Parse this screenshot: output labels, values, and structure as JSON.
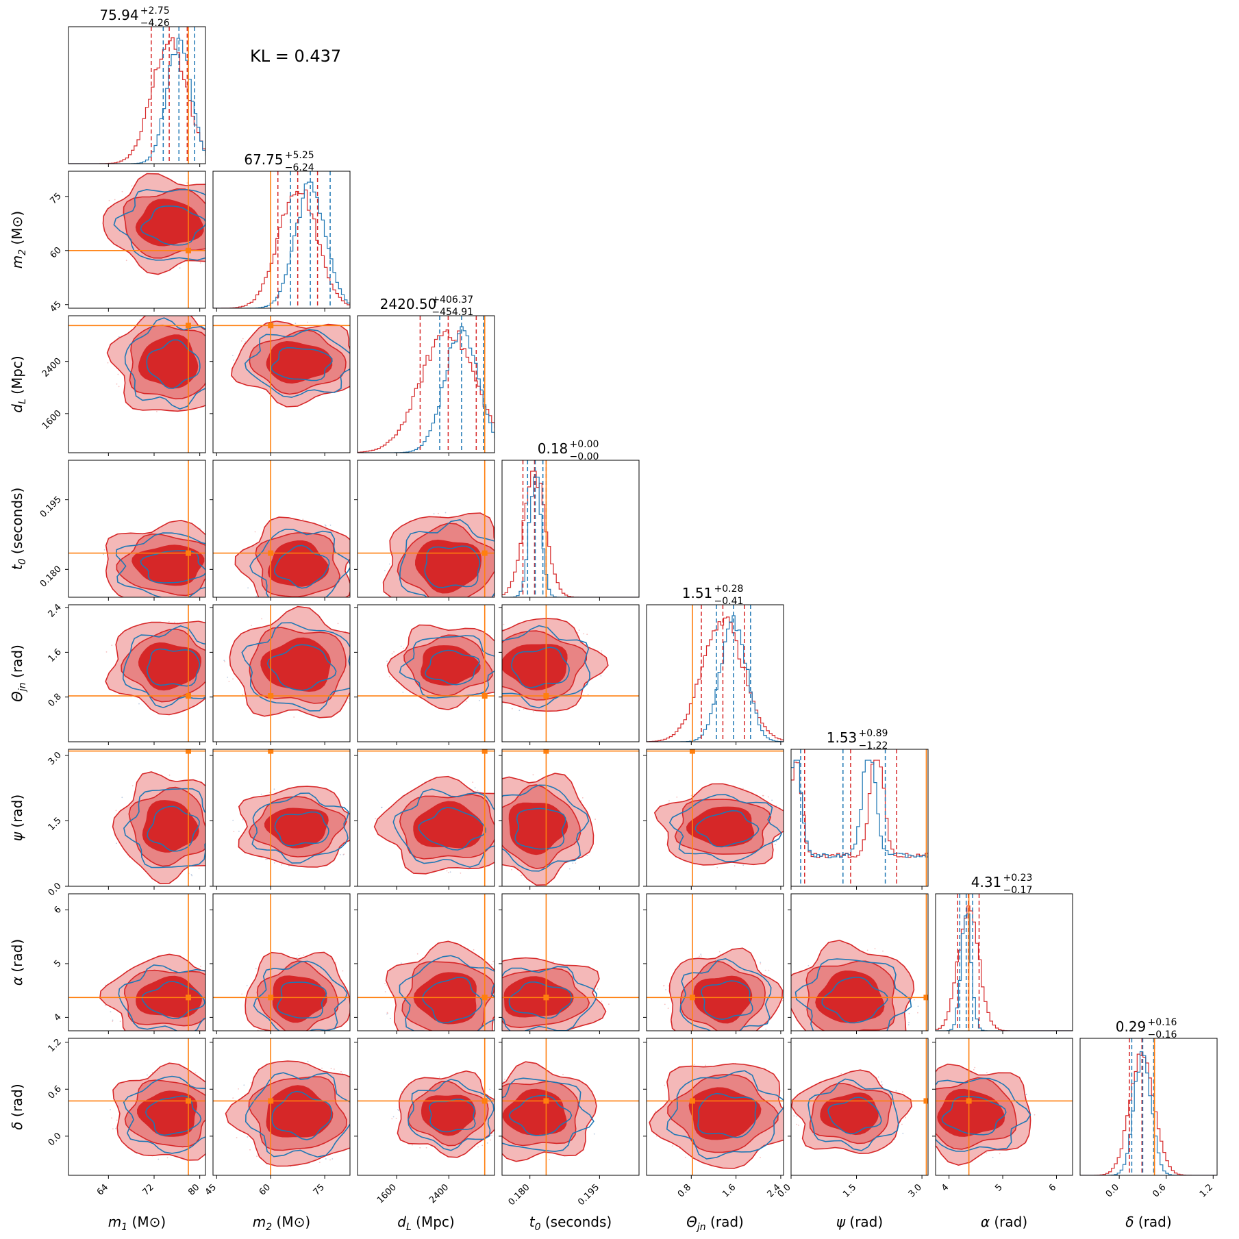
{
  "chart_data": {
    "type": "corner",
    "annotation": "KL = 0.437",
    "colors": {
      "series_a": "#d62728",
      "series_b": "#1f77b4",
      "truth": "#ff7f0e"
    },
    "parameters": [
      {
        "key": "m1",
        "label_main": "m",
        "label_sub": "1",
        "label_unit": " (M⊙)",
        "range": [
          57,
          81
        ],
        "ticks": [
          "64",
          "72",
          "80"
        ],
        "tick_values": [
          64,
          72,
          80
        ],
        "truth": 78,
        "title_median": "75.94",
        "title_plus": "+2.75",
        "title_minus": "−4.26",
        "q_a": [
          71.5,
          77.8
        ],
        "q_b": [
          73.6,
          79.1
        ]
      },
      {
        "key": "m2",
        "label_main": "m",
        "label_sub": "2",
        "label_unit": " (M⊙)",
        "range": [
          44,
          82
        ],
        "ticks": [
          "45",
          "60",
          "75"
        ],
        "tick_values": [
          45,
          60,
          75
        ],
        "truth": 60,
        "title_median": "67.75",
        "title_plus": "+5.25",
        "title_minus": "−6.24",
        "q_a": [
          62.0,
          73.0
        ],
        "q_b": [
          65.5,
          76.5
        ]
      },
      {
        "key": "dL",
        "label_main": "d",
        "label_sub": "L",
        "label_unit": " (Mpc)",
        "range": [
          1000,
          3100
        ],
        "ticks": [
          "1600",
          "2400"
        ],
        "tick_values": [
          1600,
          2400
        ],
        "truth": 2950,
        "title_median": "2420.50",
        "title_plus": "+406.37",
        "title_minus": "−454.91",
        "q_a": [
          1960,
          2820
        ],
        "q_b": [
          2260,
          2930
        ]
      },
      {
        "key": "t0",
        "label_main": "t",
        "label_sub": "0",
        "label_unit": " (seconds)",
        "range": [
          0.174,
          0.2035
        ],
        "ticks": [
          "0.180",
          "0.195"
        ],
        "tick_values": [
          0.18,
          0.195
        ],
        "truth": 0.1835,
        "title_median": "0.18",
        "title_plus": "+0.00",
        "title_minus": "−0.00",
        "q_a": [
          0.1785,
          0.1835
        ],
        "q_b": [
          0.1795,
          0.1828
        ]
      },
      {
        "key": "thjn",
        "label_main": "Θ",
        "label_sub": "jn",
        "label_unit": " (rad)",
        "range": [
          0.0,
          2.45
        ],
        "ticks": [
          "0.8",
          "1.6",
          "2.4"
        ],
        "tick_values": [
          0.8,
          1.6,
          2.4
        ],
        "truth": 0.82,
        "title_median": "1.51",
        "title_plus": "+0.28",
        "title_minus": "−0.41",
        "q_a": [
          0.98,
          1.75
        ],
        "q_b": [
          1.25,
          1.86
        ]
      },
      {
        "key": "psi",
        "label_main": "ψ",
        "label_sub": "",
        "label_unit": " (rad)",
        "range": [
          0.0,
          3.14
        ],
        "ticks": [
          "0.0",
          "1.5",
          "3.0"
        ],
        "tick_values": [
          0.0,
          1.5,
          3.0
        ],
        "truth": 3.1,
        "title_median": "1.53",
        "title_plus": "+0.89",
        "title_minus": "−1.22",
        "q_a": [
          0.31,
          2.42
        ],
        "q_b": [
          0.22,
          2.16
        ]
      },
      {
        "key": "alpha",
        "label_main": "α",
        "label_sub": "",
        "label_unit": " (rad)",
        "range": [
          3.75,
          6.3
        ],
        "ticks": [
          "4",
          "5",
          "6"
        ],
        "tick_values": [
          4,
          5,
          6
        ],
        "truth": 4.37,
        "title_median": "4.31",
        "title_plus": "+0.23",
        "title_minus": "−0.17",
        "q_a": [
          4.16,
          4.56
        ],
        "q_b": [
          4.2,
          4.44
        ]
      },
      {
        "key": "delta",
        "label_main": "δ",
        "label_sub": "",
        "label_unit": " (rad)",
        "range": [
          -0.5,
          1.25
        ],
        "ticks": [
          "0.0",
          "0.6",
          "1.2"
        ],
        "tick_values": [
          0.0,
          0.6,
          1.2
        ],
        "truth": 0.45,
        "title_median": "0.29",
        "title_plus": "+0.16",
        "title_minus": "−0.16",
        "q_a": [
          0.13,
          0.45
        ],
        "q_b": [
          0.16,
          0.44
        ]
      }
    ]
  }
}
